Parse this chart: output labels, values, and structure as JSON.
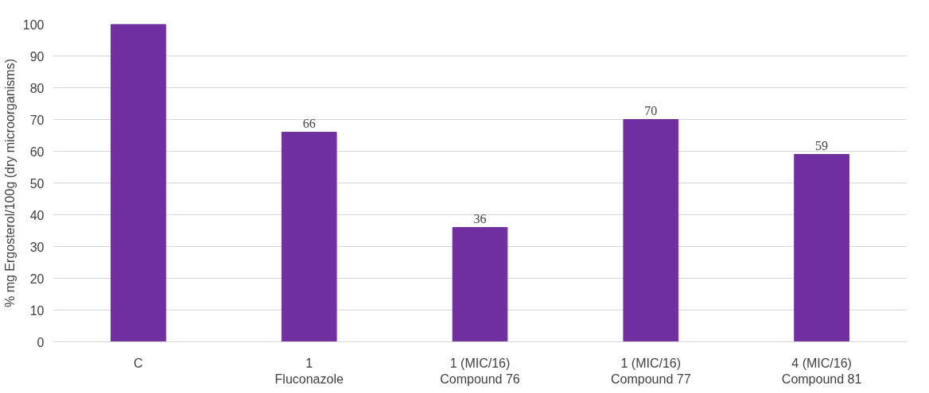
{
  "chart_data": {
    "type": "bar",
    "ylabel": "% mg Ergosterol/100g (dry microorganisms)",
    "categories": [
      "C",
      "1\nFluconazole",
      "1 (MIC/16)\nCompound 76",
      "1 (MIC/16)\nCompound 77",
      "4 (MIC/16)\nCompound 81"
    ],
    "values": [
      100,
      66,
      36,
      70,
      59
    ],
    "value_labels": [
      null,
      "66",
      "36",
      "70",
      "59"
    ],
    "color": "#7030a0",
    "ylim": [
      0,
      100
    ],
    "yticks": [
      0,
      10,
      20,
      30,
      40,
      50,
      60,
      70,
      80,
      90,
      100
    ],
    "grid": "y"
  }
}
